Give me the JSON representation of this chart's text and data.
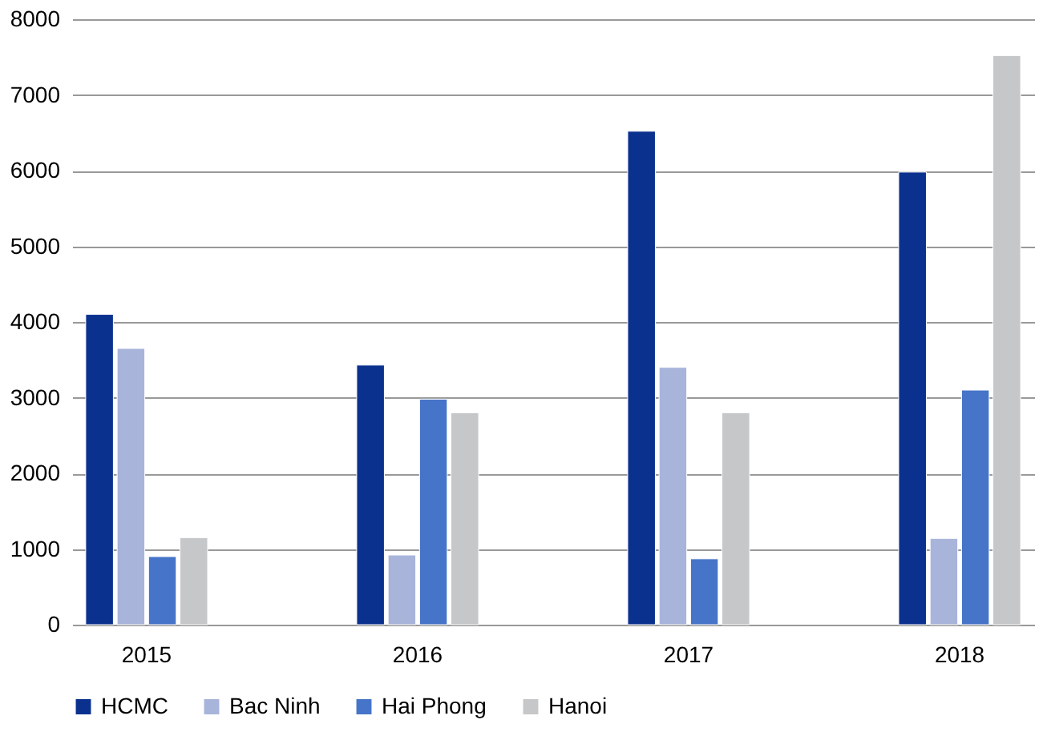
{
  "chart_data": {
    "type": "bar",
    "categories": [
      "2015",
      "2016",
      "2017",
      "2018"
    ],
    "series": [
      {
        "name": "HCMC",
        "color": "#0b318f",
        "values": [
          4100,
          3430,
          6520,
          5980
        ]
      },
      {
        "name": "Bac Ninh",
        "color": "#a8b4da",
        "values": [
          3650,
          920,
          3400,
          1140
        ]
      },
      {
        "name": "Hai Phong",
        "color": "#4674c8",
        "values": [
          900,
          2980,
          870,
          3100
        ]
      },
      {
        "name": "Hanoi",
        "color": "#c6c7c9",
        "values": [
          1150,
          2800,
          2800,
          7520
        ]
      }
    ],
    "ylim": [
      0,
      8000
    ],
    "yticks": [
      0,
      1000,
      2000,
      3000,
      4000,
      5000,
      6000,
      7000,
      8000
    ],
    "grid": "y",
    "legend": "bottom"
  }
}
